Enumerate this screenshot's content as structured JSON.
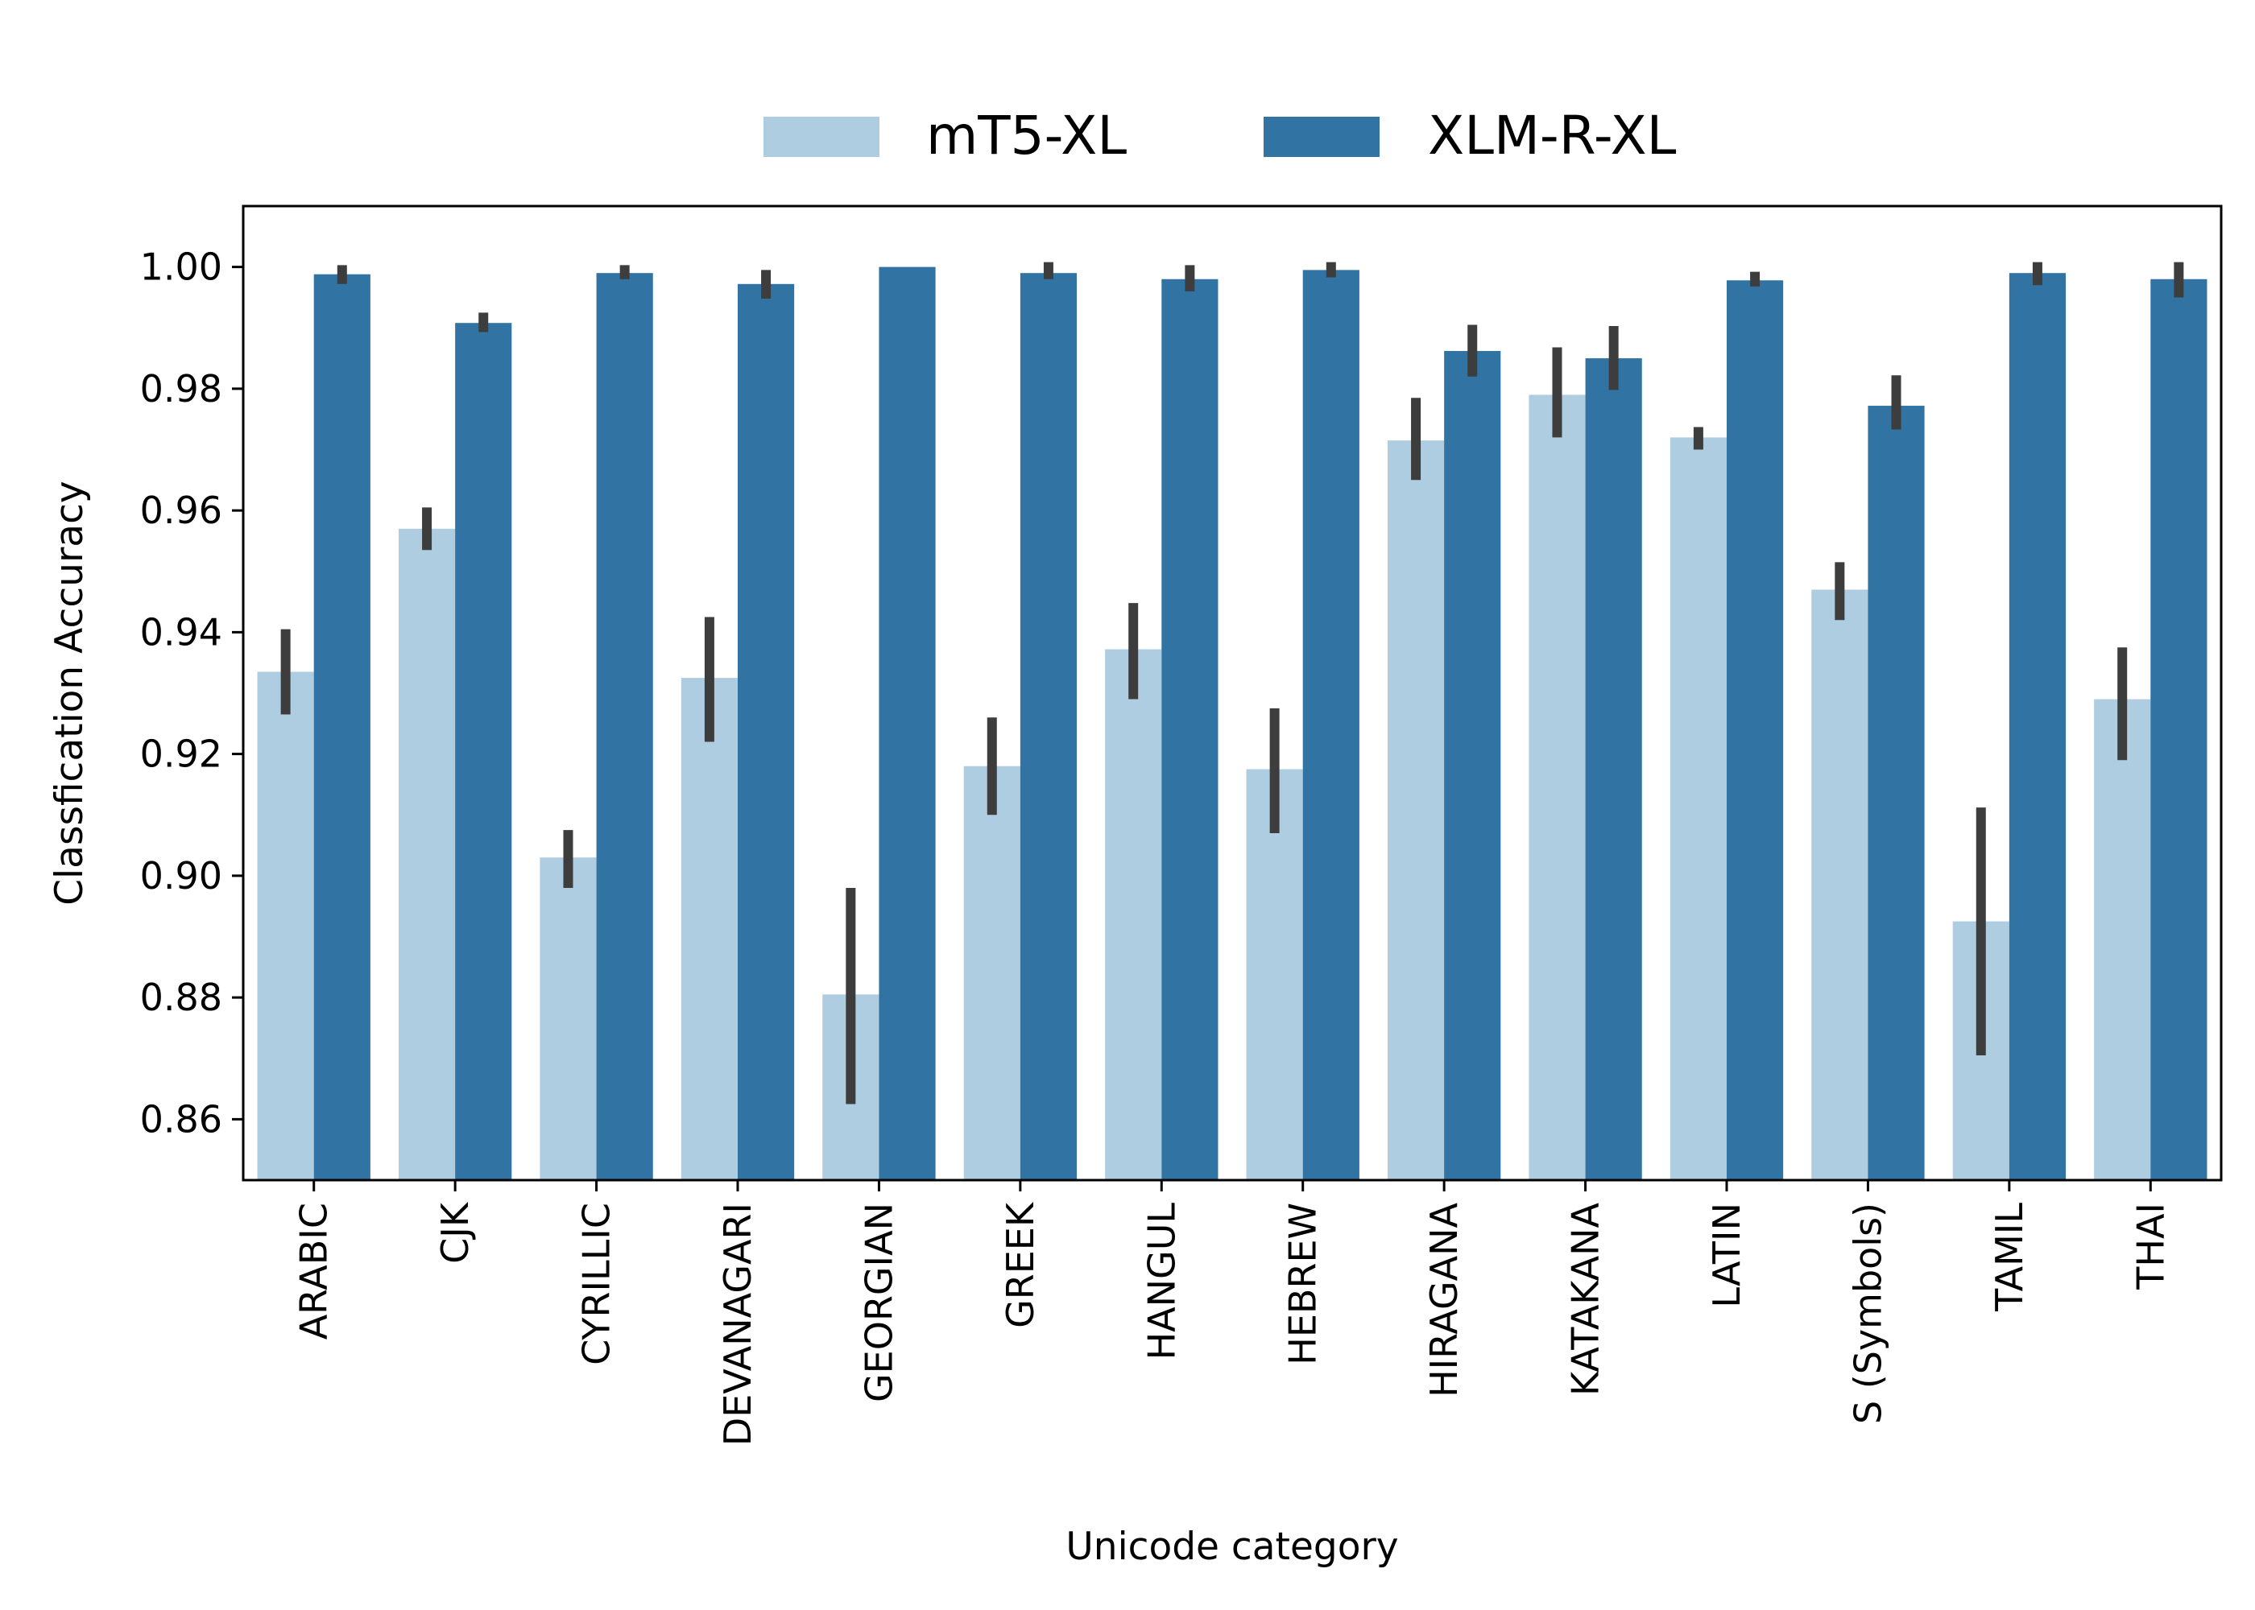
{
  "chart_data": {
    "type": "bar",
    "title": "",
    "xlabel": "Unicode category",
    "ylabel": "Classfication Accuracy",
    "ylim": [
      0.85,
      1.01
    ],
    "yticks": [
      0.86,
      0.88,
      0.9,
      0.92,
      0.94,
      0.96,
      0.98,
      1.0
    ],
    "ytick_labels": [
      "0.86",
      "0.88",
      "0.90",
      "0.92",
      "0.94",
      "0.96",
      "0.98",
      "1.00"
    ],
    "grid": false,
    "legend_position": "top-center-outside",
    "categories": [
      "ARABIC",
      "CJK",
      "CYRILLIC",
      "DEVANAGARI",
      "GEORGIAN",
      "GREEK",
      "HANGUL",
      "HEBREW",
      "HIRAGANA",
      "KATAKANA",
      "LATIN",
      "S (Symbols)",
      "TAMIL",
      "THAI"
    ],
    "series": [
      {
        "name": "mT5-XL",
        "color": "#afcde0",
        "values": [
          0.9335,
          0.957,
          0.903,
          0.9325,
          0.8805,
          0.918,
          0.9372,
          0.9175,
          0.9715,
          0.979,
          0.972,
          0.947,
          0.8925,
          0.929
        ],
        "err_low": [
          0.9265,
          0.9535,
          0.898,
          0.922,
          0.8625,
          0.91,
          0.929,
          0.907,
          0.965,
          0.972,
          0.97,
          0.942,
          0.8705,
          0.919
        ],
        "err_high": [
          0.9405,
          0.9605,
          0.9075,
          0.9425,
          0.898,
          0.926,
          0.9448,
          0.9275,
          0.9785,
          0.9868,
          0.9737,
          0.9515,
          0.9112,
          0.9375
        ]
      },
      {
        "name": "XLM-R-XL",
        "color": "#3174a4",
        "values": [
          0.9988,
          0.9908,
          0.999,
          0.9972,
          1.0,
          0.999,
          0.998,
          0.9995,
          0.9862,
          0.985,
          0.9978,
          0.9772,
          0.999,
          0.998
        ],
        "err_low": [
          0.9972,
          0.9893,
          0.998,
          0.9948,
          1.0,
          0.998,
          0.996,
          0.9983,
          0.982,
          0.9798,
          0.9968,
          0.9733,
          0.997,
          0.995
        ],
        "err_high": [
          1.0003,
          0.9925,
          1.0003,
          0.9995,
          1.0,
          1.0008,
          1.0003,
          1.0008,
          0.9905,
          0.9903,
          0.9992,
          0.9822,
          1.0008,
          1.0008
        ]
      }
    ]
  }
}
